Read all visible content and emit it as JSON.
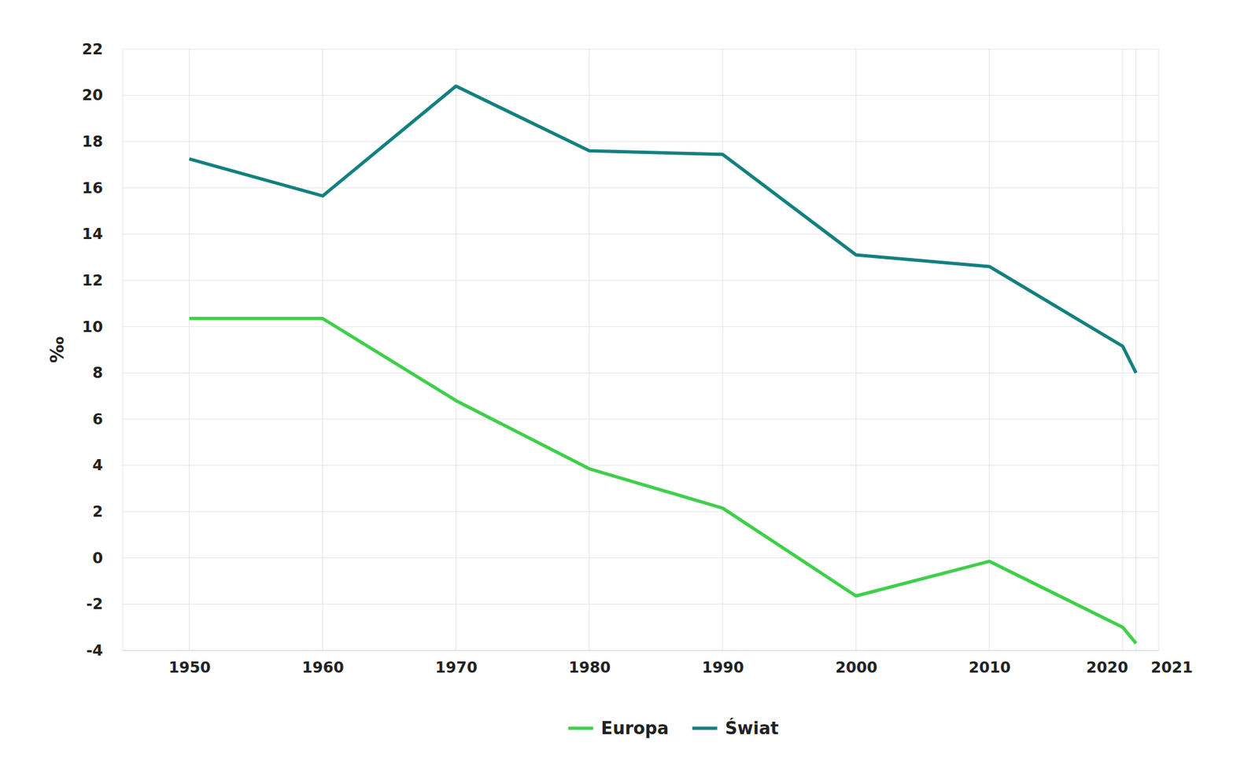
{
  "chart_data": {
    "type": "line",
    "y_label": "‰",
    "x": [
      1950,
      1960,
      1970,
      1980,
      1990,
      2000,
      2010,
      2020,
      2021
    ],
    "series": [
      {
        "name": "Europa",
        "color": "#3fcf4a",
        "values": [
          10.35,
          10.35,
          6.8,
          3.85,
          2.15,
          -1.65,
          -0.15,
          -3.0,
          -3.7
        ]
      },
      {
        "name": "Świat",
        "color": "#13807f",
        "values": [
          17.25,
          15.65,
          20.4,
          17.6,
          17.45,
          13.1,
          12.6,
          9.15,
          8.0
        ]
      }
    ],
    "xlim": [
      1945,
      2022.7
    ],
    "xticks": [
      1950,
      1960,
      1970,
      1980,
      1990,
      2000,
      2010,
      2020,
      2021
    ],
    "ylim": [
      -4,
      22
    ],
    "yticks": [
      -4,
      -2,
      0,
      2,
      4,
      6,
      8,
      10,
      12,
      14,
      16,
      18,
      20,
      22
    ],
    "grid": true,
    "legend": "bottom"
  }
}
